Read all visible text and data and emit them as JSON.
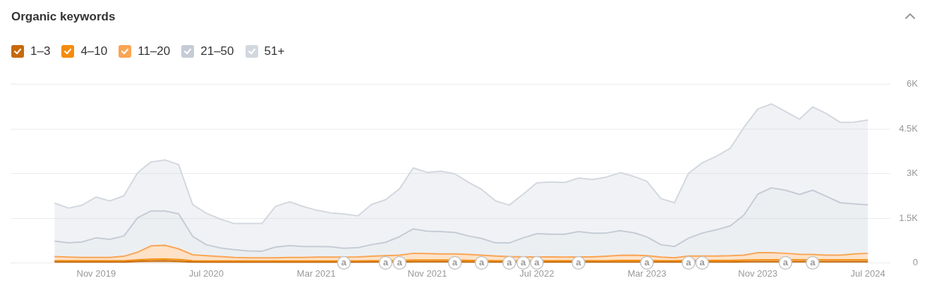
{
  "chart_data": {
    "type": "area",
    "title": "Organic keywords",
    "stacked": true,
    "legend": "top left",
    "grid": "y",
    "x": [
      "2019-08",
      "2019-09",
      "2019-10",
      "2019-11",
      "2019-12",
      "2020-01",
      "2020-02",
      "2020-03",
      "2020-04",
      "2020-05",
      "2020-06",
      "2020-07",
      "2020-08",
      "2020-09",
      "2020-10",
      "2020-11",
      "2020-12",
      "2021-01",
      "2021-02",
      "2021-03",
      "2021-04",
      "2021-05",
      "2021-06",
      "2021-07",
      "2021-08",
      "2021-09",
      "2021-10",
      "2021-11",
      "2021-12",
      "2022-01",
      "2022-02",
      "2022-03",
      "2022-04",
      "2022-05",
      "2022-06",
      "2022-07",
      "2022-08",
      "2022-09",
      "2022-10",
      "2022-11",
      "2022-12",
      "2023-01",
      "2023-02",
      "2023-03",
      "2023-04",
      "2023-05",
      "2023-06",
      "2023-07",
      "2023-08",
      "2023-09",
      "2023-10",
      "2023-11",
      "2023-12",
      "2024-01",
      "2024-02",
      "2024-03",
      "2024-04",
      "2024-05",
      "2024-06",
      "2024-07"
    ],
    "xlim": [
      "2019-04-26",
      "2024-08-20"
    ],
    "xticks": [
      {
        "value": "2019-11",
        "label": "Nov 2019"
      },
      {
        "value": "2020-07",
        "label": "Jul 2020"
      },
      {
        "value": "2021-03",
        "label": "Mar 2021"
      },
      {
        "value": "2021-11",
        "label": "Nov 2021"
      },
      {
        "value": "2022-07",
        "label": "Jul 2022"
      },
      {
        "value": "2023-03",
        "label": "Mar 2023"
      },
      {
        "value": "2023-11",
        "label": "Nov 2023"
      },
      {
        "value": "2024-07",
        "label": "Jul 2024"
      }
    ],
    "ylim": [
      0,
      6000
    ],
    "yticks": [
      0,
      {
        "value": 1500,
        "label": "1.5K"
      },
      {
        "value": 3000,
        "label": "3K"
      },
      {
        "value": 4500,
        "label": "4.5K"
      },
      {
        "value": 6000,
        "label": "6K"
      }
    ],
    "series": [
      {
        "name": "1–3",
        "color": "#c8690a",
        "values": [
          30,
          30,
          30,
          30,
          30,
          30,
          50,
          60,
          70,
          50,
          30,
          20,
          20,
          20,
          20,
          20,
          20,
          20,
          20,
          20,
          20,
          20,
          20,
          30,
          30,
          30,
          40,
          40,
          40,
          40,
          30,
          30,
          30,
          30,
          30,
          30,
          30,
          30,
          30,
          30,
          30,
          30,
          30,
          30,
          30,
          30,
          30,
          30,
          30,
          30,
          40,
          40,
          40,
          40,
          40,
          40,
          40,
          40,
          40,
          40
        ]
      },
      {
        "name": "4–10",
        "color": "#f48c0c",
        "values": [
          40,
          40,
          40,
          40,
          40,
          40,
          50,
          60,
          60,
          60,
          40,
          40,
          40,
          40,
          40,
          40,
          40,
          40,
          40,
          40,
          40,
          40,
          40,
          40,
          40,
          50,
          50,
          50,
          50,
          50,
          50,
          50,
          40,
          40,
          40,
          40,
          40,
          40,
          40,
          40,
          40,
          50,
          50,
          50,
          40,
          40,
          50,
          50,
          50,
          50,
          50,
          60,
          60,
          60,
          60,
          60,
          60,
          60,
          60,
          60
        ]
      },
      {
        "name": "11–20",
        "color": "#faa554",
        "values": [
          140,
          120,
          110,
          110,
          110,
          150,
          260,
          450,
          460,
          360,
          200,
          180,
          150,
          120,
          110,
          110,
          110,
          120,
          120,
          130,
          130,
          130,
          140,
          150,
          170,
          180,
          230,
          220,
          210,
          210,
          200,
          180,
          160,
          140,
          130,
          130,
          130,
          120,
          130,
          130,
          150,
          170,
          180,
          160,
          120,
          100,
          150,
          150,
          150,
          160,
          170,
          240,
          240,
          220,
          190,
          180,
          160,
          160,
          200,
          220
        ]
      },
      {
        "name": "21–50",
        "color": "#c5ccd6",
        "values": [
          520,
          480,
          520,
          660,
          610,
          680,
          1160,
          1170,
          1150,
          1180,
          620,
          370,
          290,
          260,
          230,
          220,
          360,
          400,
          370,
          360,
          350,
          300,
          310,
          390,
          450,
          620,
          820,
          750,
          750,
          720,
          620,
          560,
          440,
          460,
          640,
          780,
          760,
          770,
          850,
          800,
          780,
          830,
          750,
          630,
          420,
          380,
          600,
          770,
          880,
          1000,
          1340,
          1970,
          2180,
          2120,
          2010,
          2160,
          1970,
          1760,
          1680,
          1630
        ]
      },
      {
        "name": "51+",
        "color": "#d3d8df",
        "values": [
          1280,
          1170,
          1240,
          1370,
          1290,
          1350,
          1520,
          1650,
          1720,
          1650,
          1070,
          1060,
          970,
          880,
          920,
          930,
          1370,
          1470,
          1340,
          1220,
          1140,
          1150,
          1070,
          1350,
          1430,
          1610,
          2050,
          1980,
          2030,
          1970,
          1800,
          1650,
          1410,
          1270,
          1470,
          1710,
          1760,
          1740,
          1800,
          1800,
          1880,
          1950,
          1890,
          1870,
          1550,
          1470,
          2180,
          2360,
          2470,
          2610,
          2950,
          2860,
          2820,
          2650,
          2530,
          2800,
          2780,
          2700,
          2750,
          2850
        ]
      }
    ],
    "annotations": [
      {
        "text": "a",
        "x": "2021-05",
        "y": 0
      },
      {
        "text": "a",
        "x": "2021-08",
        "y": 0
      },
      {
        "text": "a",
        "x": "2021-09",
        "y": 0
      },
      {
        "text": "a",
        "x": "2022-01",
        "y": 0
      },
      {
        "text": "a",
        "x": "2022-03",
        "y": 0
      },
      {
        "text": "a",
        "x": "2022-05",
        "y": 0
      },
      {
        "text": "a",
        "x": "2022-06",
        "y": 0
      },
      {
        "text": "a",
        "x": "2022-07",
        "y": 0
      },
      {
        "text": "a",
        "x": "2022-10",
        "y": 0
      },
      {
        "text": "a",
        "x": "2023-03",
        "y": 0
      },
      {
        "text": "a",
        "x": "2023-06",
        "y": 0
      },
      {
        "text": "a",
        "x": "2023-07",
        "y": 0
      },
      {
        "text": "a",
        "x": "2024-01",
        "y": 0
      },
      {
        "text": "a",
        "x": "2024-03",
        "y": 0
      }
    ]
  }
}
